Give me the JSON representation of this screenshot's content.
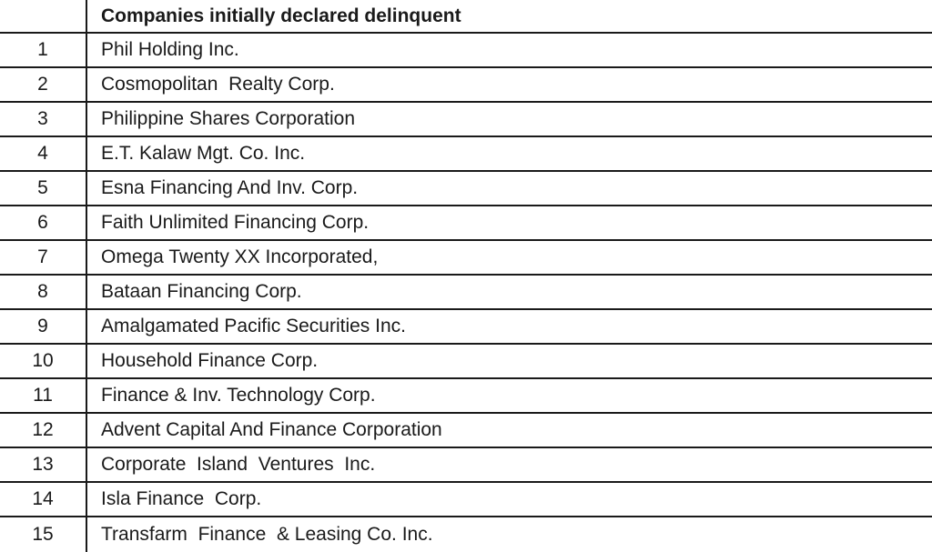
{
  "table": {
    "header": {
      "num": "",
      "title": "Companies initially declared delinquent"
    },
    "rows": [
      {
        "num": "1",
        "name": "Phil Holding Inc."
      },
      {
        "num": "2",
        "name": "Cosmopolitan  Realty Corp."
      },
      {
        "num": "3",
        "name": "Philippine Shares Corporation"
      },
      {
        "num": "4",
        "name": "E.T. Kalaw Mgt. Co. Inc."
      },
      {
        "num": "5",
        "name": "Esna Financing And Inv. Corp."
      },
      {
        "num": "6",
        "name": "Faith Unlimited Financing Corp."
      },
      {
        "num": "7",
        "name": "Omega Twenty XX Incorporated,"
      },
      {
        "num": "8",
        "name": "Bataan Financing Corp."
      },
      {
        "num": "9",
        "name": "Amalgamated Pacific Securities Inc."
      },
      {
        "num": "10",
        "name": "Household Finance Corp."
      },
      {
        "num": "11",
        "name": "Finance & Inv. Technology Corp."
      },
      {
        "num": "12",
        "name": "Advent Capital And Finance Corporation"
      },
      {
        "num": "13",
        "name": "Corporate  Island  Ventures  Inc."
      },
      {
        "num": "14",
        "name": "Isla Finance  Corp."
      },
      {
        "num": "15",
        "name": "Transfarm  Finance  & Leasing Co. Inc."
      }
    ]
  }
}
